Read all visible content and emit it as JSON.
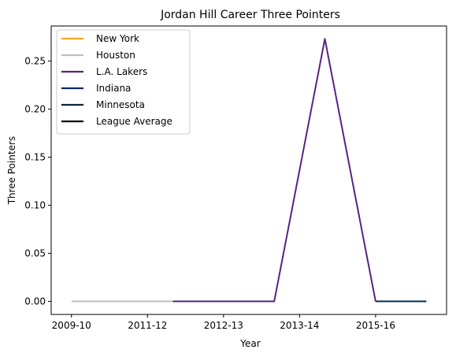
{
  "chart_data": {
    "type": "line",
    "title": "Jordan Hill  Career Three Pointers",
    "xlabel": "Year",
    "ylabel": "Three Pointers",
    "x_ticks": [
      "2009-10",
      "2011-12",
      "2012-13",
      "2013-14",
      "2015-16"
    ],
    "y_ticks": [
      "0.00",
      "0.05",
      "0.10",
      "0.15",
      "0.20",
      "0.25"
    ],
    "xlim": [
      -0.4,
      7.4
    ],
    "ylim": [
      -0.0136,
      0.2864
    ],
    "grid": false,
    "legend_position": "top-left",
    "series": [
      {
        "name": "New York",
        "color": "#f5a623",
        "x": [],
        "y": []
      },
      {
        "name": "Houston",
        "color": "#c0c0c0",
        "x": [
          0,
          1,
          2
        ],
        "y": [
          0.0,
          0.0,
          0.0
        ]
      },
      {
        "name": "L.A. Lakers",
        "color": "#552583",
        "x": [
          2,
          3,
          4,
          5,
          6
        ],
        "y": [
          0.0,
          0.0,
          0.0,
          0.273,
          0.0
        ]
      },
      {
        "name": "Indiana",
        "color": "#002d62",
        "x": [
          6,
          7
        ],
        "y": [
          0.0,
          0.0
        ]
      },
      {
        "name": "Minnesota",
        "color": "#0c2340",
        "x": [],
        "y": []
      },
      {
        "name": "League Average",
        "color": "#000000",
        "x": [],
        "y": []
      }
    ]
  }
}
